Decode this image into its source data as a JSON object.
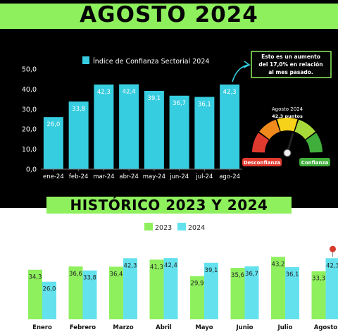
{
  "header": {
    "title": "AGOSTO 2024"
  },
  "callout": {
    "lines": [
      "Esto es un aumento",
      "del 17,0% en relación",
      "al mes pasado."
    ]
  },
  "gauge": {
    "title": "Agosto 2024",
    "subtitle": "42,3 puntos",
    "value": 42.3,
    "left_label": "Desconfianza",
    "right_label": "Confianza",
    "colors": [
      "#e03a2f",
      "#f08a1c",
      "#f7d21a",
      "#a8d93a",
      "#3fae3a"
    ]
  },
  "colors": {
    "bar_top": "#37cde0",
    "green": "#8ff05e",
    "cyan": "#63e2ee",
    "marker": "#d63b2e"
  },
  "chart_data": [
    {
      "type": "bar",
      "categories": [
        "ene-24",
        "feb-24",
        "mar-24",
        "abr-24",
        "may-24",
        "jun-24",
        "jul-24",
        "ago-24"
      ],
      "values": [
        26.0,
        33.8,
        42.3,
        42.4,
        39.1,
        36.7,
        36.1,
        42.3
      ],
      "value_labels": [
        "26,0",
        "33,8",
        "42,3",
        "42,4",
        "39,1",
        "36,7",
        "36,1",
        "42,3"
      ],
      "legend": "Índice de Confianza Sectorial 2024",
      "ylim": [
        0,
        50
      ],
      "yticks": [
        0,
        10,
        20,
        30,
        40,
        50
      ],
      "ytick_labels": [
        "0,0",
        "10,0",
        "20,0",
        "30,0",
        "40,0",
        "50,0"
      ],
      "grid": false
    },
    {
      "type": "bar",
      "title": "HISTÓRICO 2023 Y 2024",
      "categories": [
        "Enero",
        "Febrero",
        "Marzo",
        "Abril",
        "Mayo",
        "Junio",
        "Julio",
        "Agosto"
      ],
      "series": [
        {
          "name": "2023",
          "values": [
            34.3,
            36.6,
            36.4,
            41.3,
            29.9,
            35.6,
            43.2,
            33.3
          ],
          "labels": [
            "34,3",
            "36,6",
            "36,4",
            "41,3",
            "29,9",
            "35,6",
            "43,2",
            "33,3"
          ]
        },
        {
          "name": "2024",
          "values": [
            26.0,
            33.8,
            42.3,
            42.4,
            39.1,
            36.7,
            36.1,
            42.3
          ],
          "labels": [
            "26,0",
            "33,8",
            "42,3",
            "42,4",
            "39,1",
            "36,7",
            "36,1",
            "42,3"
          ]
        }
      ],
      "legend_position": "top",
      "grid": false
    }
  ]
}
